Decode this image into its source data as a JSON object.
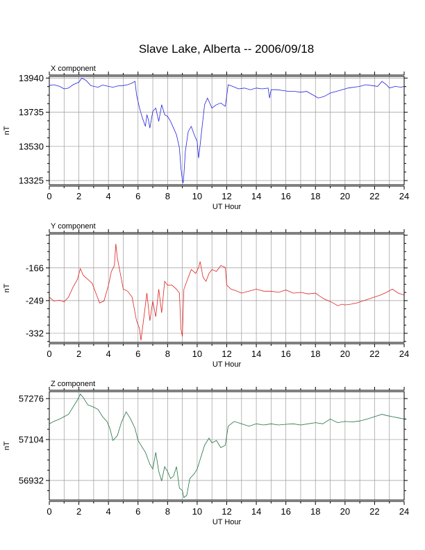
{
  "title": "Slave Lake, Alberta -- 2006/09/18",
  "chart_data": [
    {
      "type": "line",
      "panel_title": "X component",
      "xlabel": "UT Hour",
      "ylabel": "nT",
      "xlim": [
        0,
        24
      ],
      "ylim": [
        13300,
        13950
      ],
      "xticks": [
        0,
        2,
        4,
        6,
        8,
        10,
        12,
        14,
        16,
        18,
        20,
        22,
        24
      ],
      "yticks": [
        13325,
        13530,
        13735,
        13940
      ],
      "grid": true,
      "color": "#2020e0",
      "x": [
        0,
        0.3,
        0.7,
        1.0,
        1.3,
        1.6,
        2.0,
        2.2,
        2.5,
        2.8,
        3.0,
        3.3,
        3.6,
        4.0,
        4.3,
        4.6,
        5.0,
        5.3,
        5.6,
        5.8,
        5.9,
        6.0,
        6.1,
        6.2,
        6.3,
        6.5,
        6.6,
        6.7,
        6.8,
        7.0,
        7.2,
        7.4,
        7.6,
        7.8,
        8.0,
        8.2,
        8.4,
        8.6,
        8.8,
        8.9,
        9.0,
        9.05,
        9.1,
        9.2,
        9.4,
        9.6,
        9.8,
        10.0,
        10.1,
        10.2,
        10.3,
        10.5,
        10.7,
        11.0,
        11.3,
        11.6,
        11.9,
        12.1,
        12.4,
        12.8,
        13.2,
        13.6,
        14.0,
        14.4,
        14.8,
        14.9,
        15.0,
        15.4,
        15.8,
        16.2,
        16.6,
        17.0,
        17.4,
        17.8,
        18.2,
        18.6,
        19.0,
        19.4,
        19.8,
        20.2,
        20.6,
        21.0,
        21.4,
        21.8,
        22.2,
        22.5,
        22.8,
        23.0,
        23.4,
        23.8,
        24.0
      ],
      "y": [
        13895,
        13900,
        13890,
        13875,
        13880,
        13900,
        13915,
        13940,
        13925,
        13895,
        13890,
        13885,
        13898,
        13890,
        13885,
        13892,
        13895,
        13900,
        13910,
        13920,
        13840,
        13800,
        13760,
        13730,
        13700,
        13650,
        13720,
        13690,
        13640,
        13740,
        13760,
        13680,
        13780,
        13720,
        13710,
        13680,
        13640,
        13600,
        13520,
        13400,
        13330,
        13310,
        13360,
        13500,
        13620,
        13650,
        13600,
        13560,
        13460,
        13540,
        13620,
        13780,
        13820,
        13760,
        13780,
        13790,
        13770,
        13900,
        13890,
        13875,
        13880,
        13870,
        13880,
        13875,
        13880,
        13820,
        13870,
        13870,
        13865,
        13860,
        13860,
        13855,
        13860,
        13840,
        13820,
        13830,
        13850,
        13860,
        13870,
        13880,
        13885,
        13890,
        13900,
        13895,
        13890,
        13920,
        13900,
        13880,
        13890,
        13885,
        13890
      ]
    },
    {
      "type": "line",
      "panel_title": "Y component",
      "xlabel": "UT Hour",
      "ylabel": "nT",
      "xlim": [
        0,
        24
      ],
      "ylim": [
        -355,
        -80
      ],
      "xticks": [
        0,
        2,
        4,
        6,
        8,
        10,
        12,
        14,
        16,
        18,
        20,
        22,
        24
      ],
      "yticks": [
        -166,
        -249,
        -332
      ],
      "grid": true,
      "color": "#e02020",
      "x": [
        0,
        0.3,
        0.7,
        1.0,
        1.3,
        1.6,
        1.9,
        2.1,
        2.3,
        2.6,
        2.9,
        3.2,
        3.4,
        3.7,
        4.0,
        4.2,
        4.4,
        4.5,
        4.6,
        4.8,
        5.0,
        5.3,
        5.6,
        5.9,
        6.1,
        6.2,
        6.4,
        6.6,
        6.8,
        7.0,
        7.2,
        7.4,
        7.6,
        7.8,
        8.0,
        8.3,
        8.6,
        8.8,
        8.9,
        9.0,
        9.1,
        9.3,
        9.6,
        9.9,
        10.1,
        10.2,
        10.4,
        10.6,
        10.8,
        11.0,
        11.3,
        11.6,
        11.9,
        12.0,
        12.3,
        12.7,
        13.0,
        13.5,
        14.0,
        14.5,
        15.0,
        15.5,
        16.0,
        16.5,
        17.0,
        17.5,
        18.0,
        18.3,
        18.6,
        18.9,
        19.2,
        19.5,
        19.8,
        20.0,
        20.4,
        20.8,
        21.2,
        21.6,
        22.0,
        22.4,
        22.8,
        23.2,
        23.6,
        24.0
      ],
      "y": [
        -240,
        -250,
        -248,
        -252,
        -240,
        -215,
        -195,
        -168,
        -185,
        -195,
        -205,
        -235,
        -255,
        -250,
        -210,
        -175,
        -160,
        -105,
        -140,
        -180,
        -220,
        -225,
        -240,
        -300,
        -320,
        -350,
        -290,
        -230,
        -300,
        -250,
        -290,
        -220,
        -280,
        -200,
        -210,
        -210,
        -220,
        -230,
        -320,
        -340,
        -220,
        -200,
        -170,
        -180,
        -165,
        -150,
        -190,
        -200,
        -180,
        -170,
        -175,
        -160,
        -165,
        -210,
        -220,
        -225,
        -230,
        -225,
        -220,
        -225,
        -225,
        -228,
        -222,
        -230,
        -228,
        -232,
        -230,
        -238,
        -245,
        -250,
        -255,
        -262,
        -258,
        -260,
        -258,
        -255,
        -250,
        -245,
        -240,
        -235,
        -228,
        -220,
        -230,
        -235
      ]
    },
    {
      "type": "line",
      "panel_title": "Z component",
      "xlabel": "UT Hour",
      "ylabel": "nT",
      "xlim": [
        0,
        24
      ],
      "ylim": [
        56850,
        57305
      ],
      "xticks": [
        0,
        2,
        4,
        6,
        8,
        10,
        12,
        14,
        16,
        18,
        20,
        22,
        24
      ],
      "yticks": [
        57276,
        57104,
        56932
      ],
      "grid": true,
      "color": "#207040",
      "x": [
        0,
        0.3,
        0.7,
        1.0,
        1.3,
        1.6,
        1.9,
        2.1,
        2.3,
        2.6,
        3.0,
        3.3,
        3.6,
        3.9,
        4.1,
        4.3,
        4.6,
        4.9,
        5.2,
        5.5,
        5.8,
        6.0,
        6.2,
        6.5,
        6.8,
        7.0,
        7.2,
        7.4,
        7.6,
        7.8,
        8.0,
        8.2,
        8.4,
        8.6,
        8.8,
        9.0,
        9.1,
        9.3,
        9.5,
        9.8,
        10.0,
        10.2,
        10.5,
        10.8,
        11.0,
        11.3,
        11.6,
        11.9,
        12.1,
        12.5,
        13.0,
        13.5,
        14.0,
        14.5,
        15.0,
        15.5,
        16.0,
        16.5,
        17.0,
        17.5,
        18.0,
        18.5,
        19.0,
        19.5,
        20.0,
        20.5,
        21.0,
        21.5,
        22.0,
        22.5,
        22.8,
        23.2,
        23.6,
        24.0
      ],
      "y": [
        57170,
        57180,
        57190,
        57200,
        57210,
        57240,
        57270,
        57295,
        57280,
        57250,
        57240,
        57230,
        57200,
        57180,
        57150,
        57100,
        57120,
        57180,
        57220,
        57190,
        57150,
        57100,
        57080,
        57050,
        57000,
        56980,
        57050,
        56970,
        56930,
        56990,
        56970,
        56940,
        56950,
        56990,
        56900,
        56890,
        56860,
        56870,
        56940,
        56960,
        56980,
        57020,
        57080,
        57110,
        57090,
        57100,
        57070,
        57080,
        57160,
        57180,
        57170,
        57160,
        57170,
        57165,
        57170,
        57165,
        57168,
        57170,
        57165,
        57170,
        57175,
        57170,
        57190,
        57175,
        57180,
        57178,
        57182,
        57190,
        57200,
        57210,
        57205,
        57200,
        57195,
        57190
      ]
    }
  ]
}
